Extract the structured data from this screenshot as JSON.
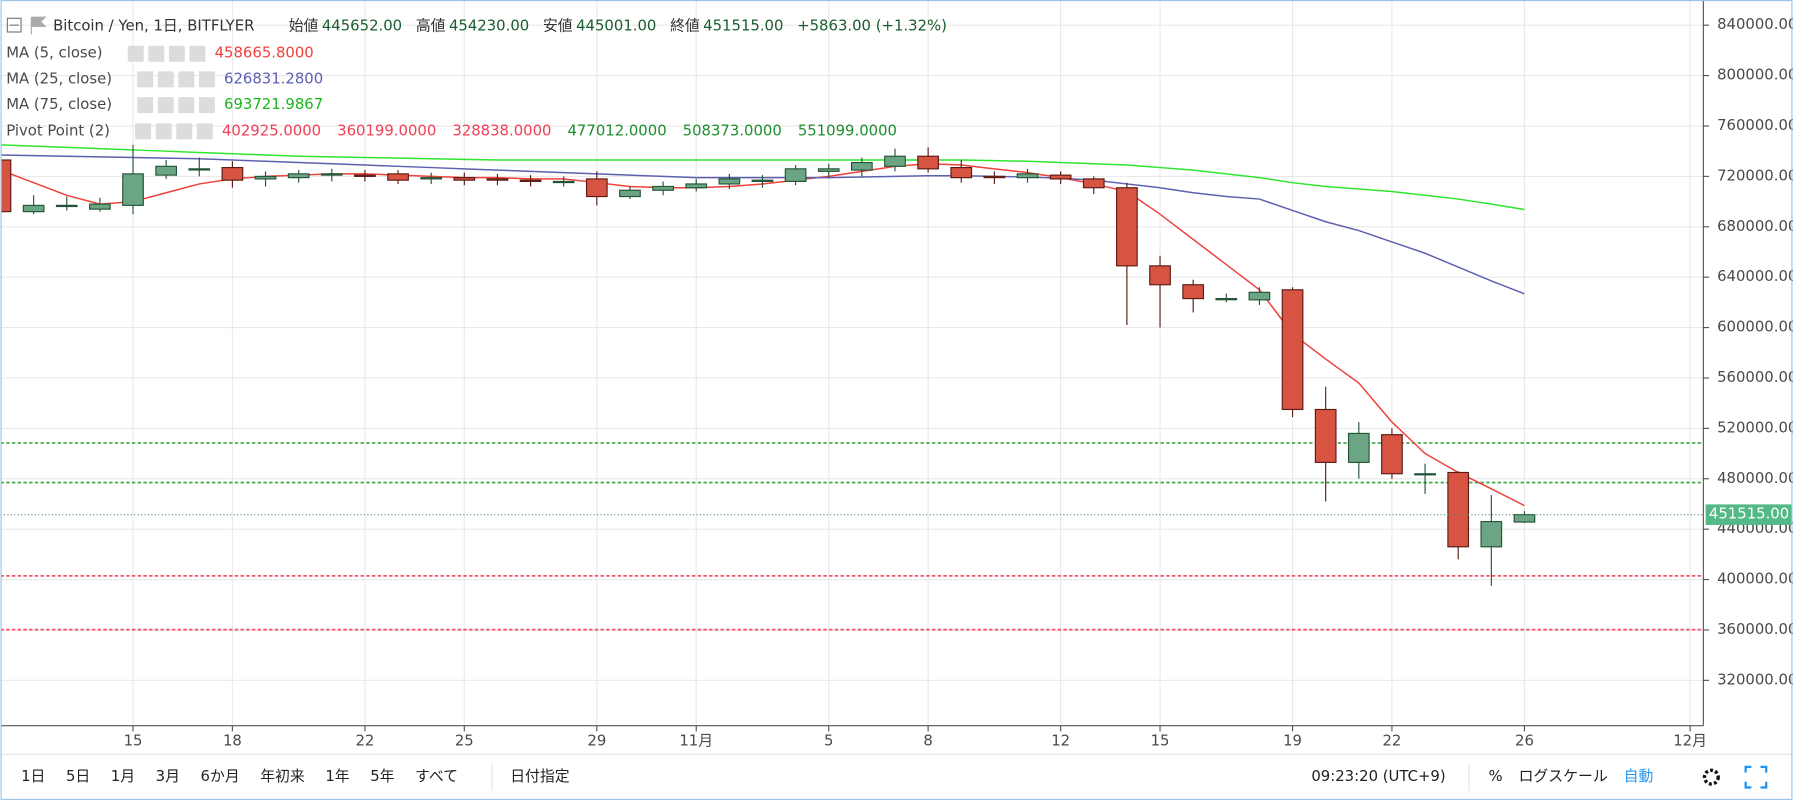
{
  "chart_data": {
    "type": "candlestick",
    "title": "Bitcoin / Yen, 1日, BITFLYER",
    "quotes": [
      {
        "label": "始値",
        "value": "445652.00"
      },
      {
        "label": "高値",
        "value": "454230.00"
      },
      {
        "label": "安値",
        "value": "445001.00"
      },
      {
        "label": "終値",
        "value": "451515.00"
      }
    ],
    "change": "+5863.00 (+1.32%)",
    "open": [
      733000,
      692000,
      697000,
      694000,
      697000,
      721000,
      726000,
      727000,
      718000,
      719000,
      721000,
      721000,
      722000,
      718000,
      719000,
      718000,
      717000,
      716000,
      718000,
      704000,
      709000,
      711000,
      714000,
      716000,
      716000,
      724000,
      725000,
      728000,
      736000,
      727000,
      720000,
      719000,
      721000,
      718000,
      711000,
      649000,
      634000,
      623000,
      622000,
      630000,
      535000,
      493000,
      515000,
      484000,
      485000,
      426000,
      445652
    ],
    "high": [
      735000,
      705000,
      704000,
      703000,
      745000,
      733000,
      735000,
      732000,
      724000,
      725000,
      726000,
      725000,
      725000,
      723000,
      723000,
      722000,
      721000,
      720000,
      724000,
      712000,
      716000,
      718000,
      722000,
      721000,
      729000,
      730000,
      735000,
      742000,
      743000,
      733000,
      724000,
      726000,
      724000,
      720000,
      715000,
      657000,
      638000,
      627000,
      632000,
      632000,
      553000,
      525000,
      520000,
      492000,
      486000,
      467000,
      454230
    ],
    "low": [
      690000,
      690000,
      693000,
      692000,
      690000,
      718000,
      720000,
      711000,
      712000,
      715000,
      716000,
      716000,
      714000,
      714000,
      713000,
      713000,
      712000,
      712000,
      697000,
      702000,
      705000,
      708000,
      710000,
      711000,
      713000,
      719000,
      720000,
      724000,
      723000,
      715000,
      714000,
      715000,
      714000,
      706000,
      602000,
      600000,
      612000,
      620000,
      618000,
      529000,
      462000,
      480000,
      480000,
      468000,
      416000,
      395000,
      445001
    ],
    "close": [
      692000,
      697000,
      697000,
      698000,
      722000,
      728000,
      726000,
      717000,
      720000,
      722000,
      722000,
      720000,
      717000,
      719000,
      717000,
      717000,
      716000,
      716000,
      704000,
      709000,
      712000,
      714000,
      718000,
      717000,
      726000,
      726000,
      731000,
      736000,
      726000,
      719000,
      719000,
      722000,
      718000,
      711000,
      649000,
      634000,
      623000,
      623000,
      628000,
      535000,
      493000,
      516000,
      484000,
      484000,
      426000,
      446000,
      451515
    ],
    "up_color": "#6ba583",
    "down_color": "#d75442",
    "indicators": [
      {
        "name": "MA (5, close)",
        "color": "#f0413b",
        "value_label": "458665.8000",
        "values": [
          725000,
          715000,
          705000,
          698000,
          700000,
          707000,
          714000,
          718000,
          720000,
          721000,
          722000,
          722000,
          721000,
          720000,
          719000,
          719000,
          718000,
          718000,
          715000,
          712000,
          711000,
          711000,
          712000,
          714000,
          717000,
          720000,
          724000,
          728000,
          730000,
          729000,
          726000,
          723000,
          719000,
          714000,
          708000,
          690000,
          670000,
          650000,
          630000,
          595000,
          575000,
          556000,
          525000,
          500000,
          485000,
          472000,
          458665.8
        ]
      },
      {
        "name": "MA (25, close)",
        "color": "#5d60b0",
        "value_label": "626831.2800",
        "values": [
          737000,
          736500,
          736000,
          735500,
          735000,
          734500,
          734000,
          733000,
          732000,
          731000,
          730000,
          729000,
          728000,
          727000,
          726000,
          725000,
          724000,
          723000,
          722000,
          721000,
          720000,
          719000,
          719000,
          719000,
          719000,
          719000,
          719500,
          720000,
          720500,
          720500,
          720000,
          719500,
          718500,
          717000,
          714000,
          711000,
          707000,
          704000,
          702000,
          693000,
          684000,
          677000,
          668000,
          659000,
          648000,
          637000,
          626831.28
        ]
      },
      {
        "name": "MA (75, close)",
        "color": "#2ee62e",
        "value_label": "693721.9867",
        "values": [
          745000,
          744000,
          743000,
          742000,
          741000,
          740000,
          739000,
          738000,
          737000,
          736000,
          735500,
          735000,
          734500,
          734000,
          733500,
          733000,
          733000,
          733000,
          733000,
          733000,
          733000,
          733000,
          733000,
          733000,
          733000,
          733000,
          733000,
          733000,
          733000,
          733000,
          732500,
          732000,
          731000,
          730000,
          729000,
          727000,
          725000,
          722000,
          719000,
          715000,
          712000,
          710000,
          708000,
          705000,
          702000,
          698000,
          693721.9867
        ]
      }
    ],
    "pivot": {
      "name": "Pivot Point (2)",
      "value_labels": [
        "402925.0000",
        "360199.0000",
        "328838.0000",
        "477012.0000",
        "508373.0000",
        "551099.0000"
      ],
      "colors": [
        "#f23f55",
        "#f23f55",
        "#f23f55",
        "#1e8e2e",
        "#1e8e2e",
        "#1e8e2e"
      ]
    },
    "hlines": [
      {
        "value": 402925,
        "color": "#f5536a"
      },
      {
        "value": 360199,
        "color": "#f5536a"
      },
      {
        "value": 477012,
        "color": "#4caf50"
      },
      {
        "value": 508373,
        "color": "#4caf50"
      }
    ],
    "last_price_label": "451515.00",
    "xlim": [
      0,
      51.4
    ],
    "xticks": [
      {
        "value": 4,
        "label": "15"
      },
      {
        "value": 7,
        "label": "18"
      },
      {
        "value": 11,
        "label": "22"
      },
      {
        "value": 14,
        "label": "25"
      },
      {
        "value": 18,
        "label": "29"
      },
      {
        "value": 21,
        "label": "11月"
      },
      {
        "value": 25,
        "label": "5"
      },
      {
        "value": 28,
        "label": "8"
      },
      {
        "value": 32,
        "label": "12"
      },
      {
        "value": 35,
        "label": "15"
      },
      {
        "value": 39,
        "label": "19"
      },
      {
        "value": 42,
        "label": "22"
      },
      {
        "value": 46,
        "label": "26"
      },
      {
        "value": 51,
        "label": "12月"
      }
    ],
    "ylim": [
      284000,
      860000
    ],
    "yticks": [
      {
        "value": 320000,
        "label": "320000.00"
      },
      {
        "value": 360000,
        "label": "360000.00"
      },
      {
        "value": 400000,
        "label": "400000.00"
      },
      {
        "value": 440000,
        "label": "440000.00"
      },
      {
        "value": 480000,
        "label": "480000.00"
      },
      {
        "value": 520000,
        "label": "520000.00"
      },
      {
        "value": 560000,
        "label": "560000.00"
      },
      {
        "value": 600000,
        "label": "600000.00"
      },
      {
        "value": 640000,
        "label": "640000.00"
      },
      {
        "value": 680000,
        "label": "680000.00"
      },
      {
        "value": 720000,
        "label": "720000.00"
      },
      {
        "value": 760000,
        "label": "760000.00"
      },
      {
        "value": 800000,
        "label": "800000.00"
      },
      {
        "value": 840000,
        "label": "840000.00"
      }
    ],
    "grid": true
  },
  "toolbar": {
    "ranges": [
      "1日",
      "5日",
      "1月",
      "3月",
      "6か月",
      "年初来",
      "1年",
      "5年",
      "すべて"
    ],
    "date_range": "日付指定",
    "time": "09:23:20 (UTC+9)",
    "percent": "%",
    "log": "ログスケール",
    "auto": "自動"
  }
}
